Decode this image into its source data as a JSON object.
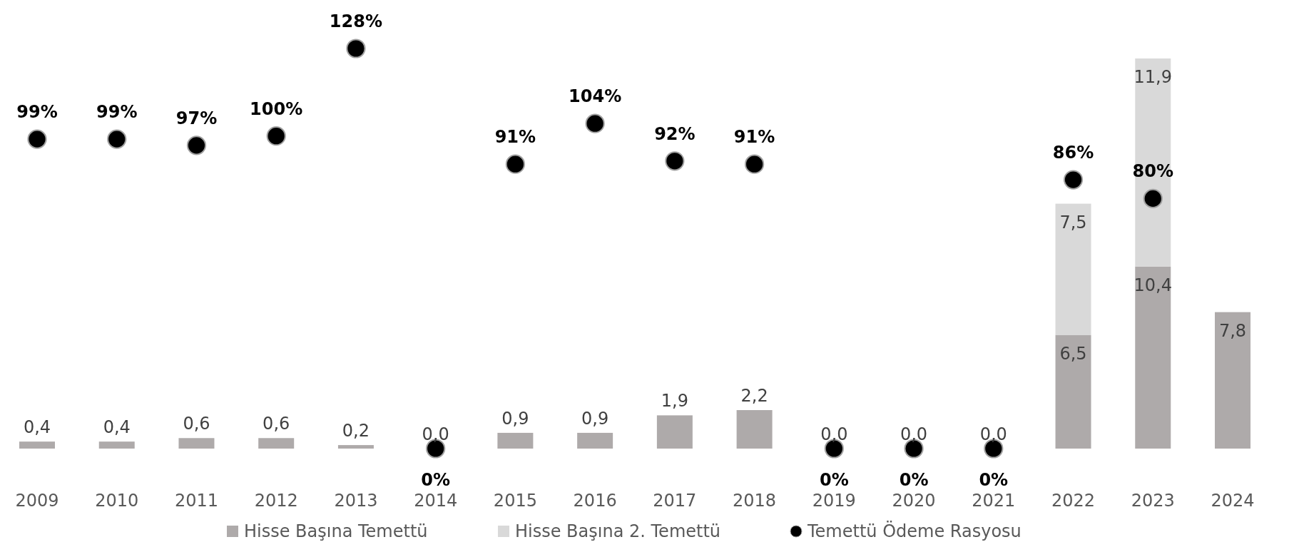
{
  "chart_data": {
    "type": "bar",
    "stacked": true,
    "legend": "bottom",
    "categories": [
      "2009",
      "2010",
      "2011",
      "2012",
      "2013",
      "2014",
      "2015",
      "2016",
      "2017",
      "2018",
      "2019",
      "2020",
      "2021",
      "2022",
      "2023",
      "2024"
    ],
    "series": [
      {
        "name": "Hisse Başına Temettü",
        "color": "#aeaaaa",
        "values": [
          0.4,
          0.4,
          0.6,
          0.6,
          0.2,
          0.0,
          0.9,
          0.9,
          1.9,
          2.2,
          0.0,
          0.0,
          0.0,
          6.5,
          10.4,
          7.8
        ],
        "value_labels": [
          "0,4",
          "0,4",
          "0,6",
          "0,6",
          "0,2",
          "0,0",
          "0,9",
          "0,9",
          "1,9",
          "2,2",
          "0,0",
          "0,0",
          "0,0",
          "6,5",
          "10,4",
          "7,8"
        ]
      },
      {
        "name": "Hisse Başına 2. Temettü",
        "color": "#d9d9d9",
        "values": [
          null,
          null,
          null,
          null,
          null,
          null,
          null,
          null,
          null,
          null,
          null,
          null,
          null,
          7.5,
          11.9,
          null
        ],
        "value_labels": [
          null,
          null,
          null,
          null,
          null,
          null,
          null,
          null,
          null,
          null,
          null,
          null,
          null,
          "7,5",
          "11,9",
          null
        ]
      },
      {
        "name": "Temettü Ödeme Rasyosu",
        "type": "scatter",
        "axis": "y2",
        "marker": "circle",
        "color": "#000000",
        "values": [
          99,
          99,
          97,
          100,
          128,
          0,
          91,
          104,
          92,
          91,
          0,
          0,
          0,
          86,
          80,
          null
        ],
        "value_labels": [
          "99%",
          "99%",
          "97%",
          "100%",
          "128%",
          "0%",
          "91%",
          "104%",
          "92%",
          "91%",
          "0%",
          "0%",
          "0%",
          "86%",
          "80%",
          null
        ]
      }
    ]
  }
}
